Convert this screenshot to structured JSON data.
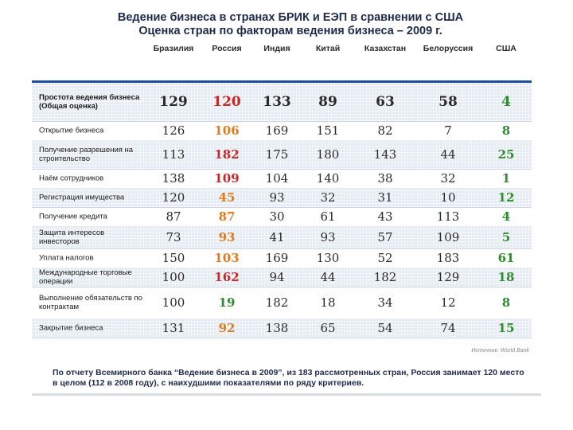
{
  "title": {
    "line1": "Ведение бизнеса в странах БРИК  и ЕЭП в сравнении с США",
    "line2": "Оценка стран по факторам ведения бизнеса – 2009 г."
  },
  "columns": [
    "Бразилия",
    "Россия",
    "Индия",
    "Китай",
    "Казахстан",
    "Белоруссия",
    "США"
  ],
  "rows": [
    {
      "label": "Простота ведения бизнеса  (Общая оценка)",
      "values": [
        "129",
        "120",
        "133",
        "89",
        "63",
        "58",
        "4"
      ],
      "russia_color": "#c62828",
      "bold": true
    },
    {
      "label": "Открытие бизнеса",
      "values": [
        "126",
        "106",
        "169",
        "151",
        "82",
        "7",
        "8"
      ],
      "russia_color": "#e07a1a",
      "bold": false
    },
    {
      "label": "Получение разрешения на строительство",
      "values": [
        "113",
        "182",
        "175",
        "180",
        "143",
        "44",
        "25"
      ],
      "russia_color": "#c62828",
      "bold": false
    },
    {
      "label": "Наём сотрудников",
      "values": [
        "138",
        "109",
        "104",
        "140",
        "38",
        "32",
        "1"
      ],
      "russia_color": "#c62828",
      "bold": false
    },
    {
      "label": "Регистрация имущества",
      "values": [
        "120",
        "45",
        "93",
        "32",
        "31",
        "10",
        "12"
      ],
      "russia_color": "#e07a1a",
      "bold": false
    },
    {
      "label": "Получение кредита",
      "values": [
        "87",
        "87",
        "30",
        "61",
        "43",
        "113",
        "4"
      ],
      "russia_color": "#e07a1a",
      "bold": false
    },
    {
      "label": "Защита интересов инвесторов",
      "values": [
        "73",
        "93",
        "41",
        "93",
        "57",
        "109",
        "5"
      ],
      "russia_color": "#e07a1a",
      "bold": false
    },
    {
      "label": "Уплата налогов",
      "values": [
        "150",
        "103",
        "169",
        "130",
        "52",
        "183",
        "61"
      ],
      "russia_color": "#e07a1a",
      "bold": false
    },
    {
      "label": "Международные торговые операции",
      "values": [
        "100",
        "162",
        "94",
        "44",
        "182",
        "129",
        "18"
      ],
      "russia_color": "#c62828",
      "bold": false
    },
    {
      "label": "Выполнение обязательств  по контрактам",
      "values": [
        "100",
        "19",
        "182",
        "18",
        "34",
        "12",
        "8"
      ],
      "russia_color": "#2e8b2e",
      "bold": false
    },
    {
      "label": "Закрытие бизнеса",
      "values": [
        "131",
        "92",
        "138",
        "65",
        "54",
        "74",
        "15"
      ],
      "russia_color": "#e07a1a",
      "bold": false
    }
  ],
  "source": "Источник: World Bank",
  "footnote": {
    "line1": "По отчету Всемирного банка “Ведение бизнеса в 2009”, из 183 рассмотренных стран, Россия занимает 120 место",
    "line2": "в целом (112 в 2008 году), с наихудшими показателями по ряду критериев."
  },
  "colors": {
    "usa": "#2e8b2e",
    "header_rule": "#1e4f9e",
    "shade": "#e4ebf5"
  }
}
